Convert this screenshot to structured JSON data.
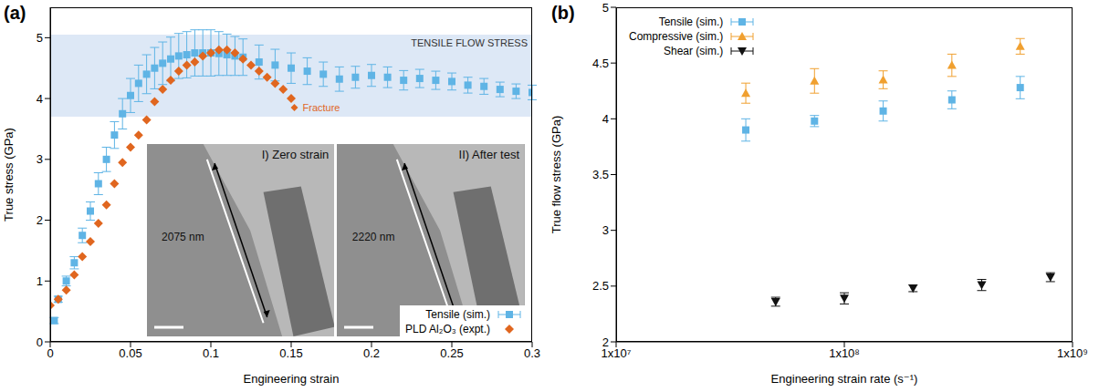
{
  "chart_data": [
    {
      "type": "scatter",
      "panel_label": "(a)",
      "x_label": "Engineering strain",
      "y_label": "True stress (GPa)",
      "xlim": [
        0,
        0.3
      ],
      "xticks": [
        0,
        0.05,
        0.1,
        0.15,
        0.2,
        0.25,
        0.3
      ],
      "ylim": [
        0,
        5.5
      ],
      "yticks": [
        0,
        1,
        2,
        3,
        4,
        5
      ],
      "grid": false,
      "legend": "lower right",
      "band": {
        "label": "TENSILE FLOW STRESS",
        "y": [
          3.7,
          5.05
        ],
        "color": "#dde8f6"
      },
      "series": [
        {
          "name": "Tensile (sim.)",
          "color": "#5fb4e5",
          "marker": "square",
          "x": [
            0.0025,
            0.005,
            0.01,
            0.015,
            0.02,
            0.025,
            0.03,
            0.035,
            0.04,
            0.045,
            0.05,
            0.055,
            0.06,
            0.065,
            0.07,
            0.075,
            0.08,
            0.085,
            0.09,
            0.095,
            0.1,
            0.105,
            0.11,
            0.115,
            0.12,
            0.13,
            0.14,
            0.15,
            0.16,
            0.17,
            0.18,
            0.19,
            0.2,
            0.21,
            0.22,
            0.23,
            0.24,
            0.25,
            0.26,
            0.27,
            0.28,
            0.29,
            0.3
          ],
          "values": [
            0.35,
            0.7,
            1.0,
            1.3,
            1.75,
            2.15,
            2.6,
            3.0,
            3.4,
            3.75,
            4.05,
            4.25,
            4.4,
            4.5,
            4.58,
            4.65,
            4.7,
            4.72,
            4.75,
            4.75,
            4.75,
            4.74,
            4.72,
            4.7,
            4.68,
            4.6,
            4.55,
            4.5,
            4.45,
            4.4,
            4.32,
            4.35,
            4.38,
            4.35,
            4.3,
            4.33,
            4.3,
            4.28,
            4.22,
            4.2,
            4.15,
            4.12,
            4.1
          ],
          "y_err": [
            0.05,
            0.05,
            0.08,
            0.1,
            0.12,
            0.15,
            0.18,
            0.2,
            0.22,
            0.25,
            0.28,
            0.3,
            0.32,
            0.34,
            0.35,
            0.36,
            0.37,
            0.38,
            0.38,
            0.38,
            0.38,
            0.36,
            0.34,
            0.32,
            0.3,
            0.28,
            0.26,
            0.25,
            0.22,
            0.2,
            0.2,
            0.18,
            0.18,
            0.17,
            0.16,
            0.15,
            0.15,
            0.14,
            0.13,
            0.13,
            0.12,
            0.12,
            0.12
          ]
        },
        {
          "name": "PLD Al₂O₃ (expt.)",
          "color": "#e0661f",
          "marker": "diamond",
          "x": [
            0,
            0.005,
            0.01,
            0.015,
            0.02,
            0.025,
            0.03,
            0.035,
            0.04,
            0.045,
            0.05,
            0.055,
            0.06,
            0.065,
            0.07,
            0.075,
            0.08,
            0.085,
            0.09,
            0.095,
            0.1,
            0.105,
            0.11,
            0.115,
            0.12,
            0.125,
            0.13,
            0.135,
            0.14,
            0.145,
            0.15
          ],
          "values": [
            0.6,
            0.7,
            0.85,
            1.1,
            1.4,
            1.65,
            1.95,
            2.25,
            2.6,
            2.95,
            3.2,
            3.4,
            3.65,
            3.95,
            4.15,
            4.3,
            4.45,
            4.55,
            4.6,
            4.7,
            4.75,
            4.8,
            4.8,
            4.75,
            4.65,
            4.55,
            4.45,
            4.35,
            4.25,
            4.15,
            4.0
          ]
        }
      ],
      "annotations": [
        {
          "text": "Fracture",
          "x": 0.152,
          "y": 3.85,
          "color": "#e0661f",
          "marker": "diamond"
        }
      ],
      "inset": [
        {
          "label": "I) Zero strain",
          "length": "2075 nm"
        },
        {
          "label": "II) After test",
          "length": "2220 nm"
        }
      ]
    },
    {
      "type": "scatter",
      "panel_label": "(b)",
      "x_label": "Engineering strain rate (s⁻¹)",
      "y_label": "True flow stress (GPa)",
      "log": "x",
      "xlim": [
        10000000,
        1000000000
      ],
      "xticks": [
        {
          "value": 10000000,
          "label": "1x10⁷"
        },
        {
          "value": 100000000,
          "label": "1x10⁸"
        },
        {
          "value": 1000000000,
          "label": "1x10⁹"
        }
      ],
      "ylim": [
        2,
        5
      ],
      "yticks": [
        2,
        2.5,
        3,
        3.5,
        4,
        4.5,
        5
      ],
      "grid": false,
      "legend": "upper left",
      "series": [
        {
          "name": "Tensile (sim.)",
          "color": "#5fb4e5",
          "marker": "square",
          "x": [
            37000000,
            74000000,
            148000000,
            296000000,
            590000000
          ],
          "values": [
            3.9,
            3.98,
            4.07,
            4.17,
            4.28
          ],
          "y_err": [
            0.1,
            0.05,
            0.09,
            0.08,
            0.1
          ]
        },
        {
          "name": "Compressive (sim.)",
          "color": "#f0a030",
          "marker": "triangle",
          "x": [
            37000000,
            74000000,
            148000000,
            296000000,
            590000000
          ],
          "values": [
            4.23,
            4.34,
            4.35,
            4.48,
            4.65
          ],
          "y_err": [
            0.09,
            0.11,
            0.08,
            0.1,
            0.07
          ]
        },
        {
          "name": "Shear (sim.)",
          "color": "#111111",
          "marker": "triangle_down",
          "x": [
            50000000,
            100000000,
            200000000,
            400000000,
            800000000
          ],
          "values": [
            2.36,
            2.39,
            2.48,
            2.51,
            2.58
          ],
          "y_err": [
            0.04,
            0.05,
            0.03,
            0.05,
            0.04
          ]
        }
      ]
    }
  ]
}
